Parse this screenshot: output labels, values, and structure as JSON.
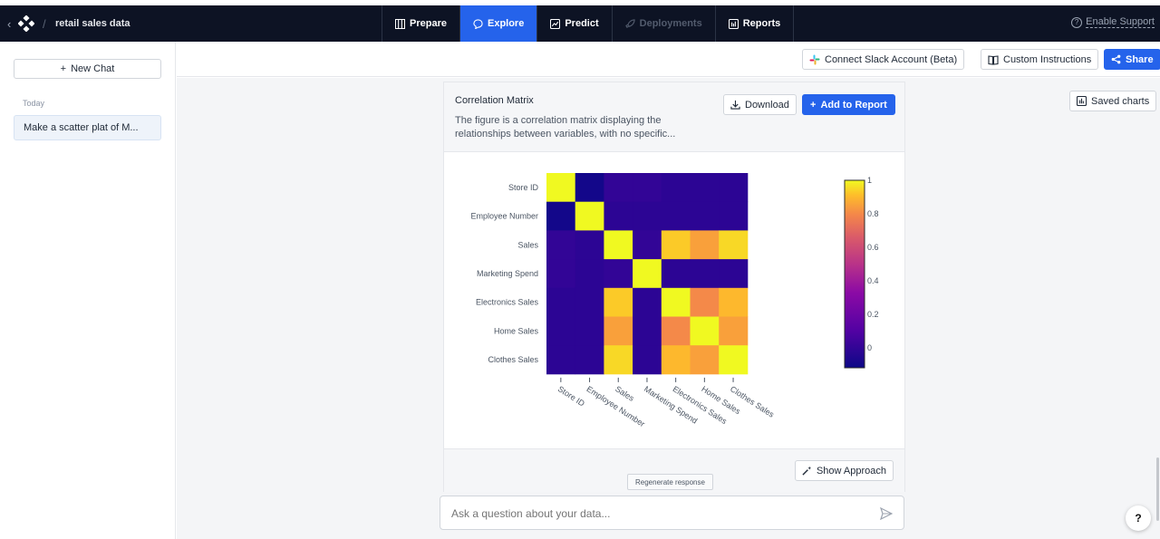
{
  "header": {
    "dataset_title": "retail sales data",
    "nav": [
      {
        "label": "Prepare",
        "icon": "table-icon",
        "state": "normal"
      },
      {
        "label": "Explore",
        "icon": "chat-bubble-icon",
        "state": "active"
      },
      {
        "label": "Predict",
        "icon": "trend-chart-icon",
        "state": "normal"
      },
      {
        "label": "Deployments",
        "icon": "rocket-icon",
        "state": "disabled"
      },
      {
        "label": "Reports",
        "icon": "report-icon",
        "state": "normal"
      }
    ],
    "support_label": "Enable Support"
  },
  "sidebar": {
    "new_chat_label": "New Chat",
    "section_label": "Today",
    "chats": [
      "Make a scatter plat of M..."
    ]
  },
  "toolbar": {
    "slack_label": "Connect Slack Account (Beta)",
    "instructions_label": "Custom Instructions",
    "share_label": "Share"
  },
  "card": {
    "title": "Correlation Matrix",
    "description": "The figure is a correlation matrix displaying the relationships between variables, with no specific...",
    "download_label": "Download",
    "add_report_label": "Add to Report",
    "show_approach_label": "Show Approach",
    "regenerate_label": "Regenerate response"
  },
  "saved_charts_label": "Saved charts",
  "ask": {
    "placeholder": "Ask a question about your data..."
  },
  "help_label": "?",
  "colors": {
    "accent": "#2563eb",
    "topbar": "#0d1324"
  },
  "chart_data": {
    "type": "heatmap",
    "variables": [
      "Store ID",
      "Employee Number",
      "Sales",
      "Marketing Spend",
      "Electronics Sales",
      "Home Sales",
      "Clothes Sales"
    ],
    "values": [
      [
        1.0,
        -0.1,
        0.0,
        0.0,
        -0.02,
        -0.02,
        -0.02
      ],
      [
        -0.1,
        1.0,
        -0.02,
        -0.02,
        -0.02,
        -0.02,
        -0.02
      ],
      [
        0.0,
        -0.02,
        1.0,
        0.0,
        0.93,
        0.85,
        0.95
      ],
      [
        0.0,
        -0.02,
        0.0,
        1.0,
        -0.02,
        -0.02,
        -0.02
      ],
      [
        -0.02,
        -0.02,
        0.93,
        -0.02,
        1.0,
        0.8,
        0.9
      ],
      [
        -0.02,
        -0.02,
        0.85,
        -0.02,
        0.8,
        1.0,
        0.85
      ],
      [
        -0.02,
        -0.02,
        0.95,
        -0.02,
        0.9,
        0.85,
        1.0
      ]
    ],
    "colorscale": "plasma",
    "colorbar_ticks": [
      "1",
      "0.8",
      "0.6",
      "0.4",
      "0.2",
      "0"
    ],
    "zmin": -0.12,
    "zmax": 1.0
  }
}
